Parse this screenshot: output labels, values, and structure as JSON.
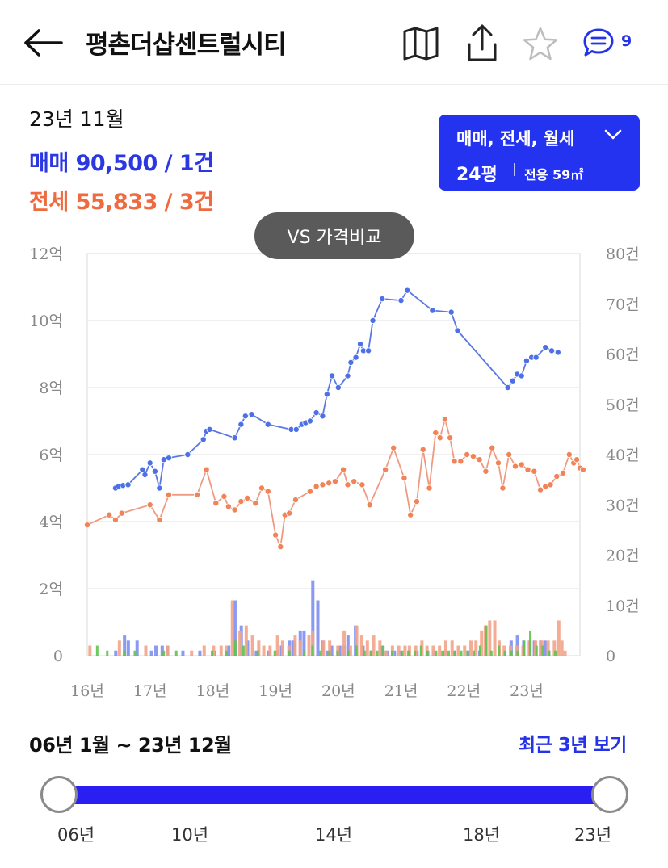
{
  "header": {
    "title": "평촌더샵센트럴시티",
    "comment_count": "9",
    "icons": [
      "back-arrow-icon",
      "map-icon",
      "share-icon",
      "star-icon",
      "chat-icon"
    ]
  },
  "summary": {
    "date": "23년 11월",
    "sale": "매매 90,500 / 1건",
    "jeonse": "전세 55,833 / 3건"
  },
  "filter": {
    "types": "매매, 전세, 월세",
    "size": "24평",
    "area": "전용 59㎡"
  },
  "compare_button": "VS 가격비교",
  "colors": {
    "accent": "#2433e8",
    "sale": "#5c7ce6",
    "jeonse": "#ef8a6a",
    "wolse": "#5ec44a"
  },
  "chart_data": {
    "type": "line",
    "x_ticks": [
      "16년",
      "17년",
      "18년",
      "19년",
      "20년",
      "21년",
      "22년",
      "23년"
    ],
    "y_left_ticks": [
      "0",
      "2억",
      "4억",
      "6억",
      "8억",
      "10억",
      "12억"
    ],
    "y_right_ticks": [
      "0",
      "10건",
      "20건",
      "30건",
      "40건",
      "50건",
      "60건",
      "70건",
      "80건"
    ],
    "ylim_left": [
      0,
      12
    ],
    "ylim_right": [
      0,
      80
    ],
    "xlim": [
      2016,
      2023.85
    ],
    "grid": true,
    "series": [
      {
        "name": "매매",
        "axis": "left",
        "points": [
          [
            2016.45,
            5.0
          ],
          [
            2016.5,
            5.05
          ],
          [
            2016.57,
            5.08
          ],
          [
            2016.65,
            5.1
          ],
          [
            2016.88,
            5.55
          ],
          [
            2016.92,
            5.4
          ],
          [
            2017.0,
            5.75
          ],
          [
            2017.08,
            5.5
          ],
          [
            2017.15,
            5.0
          ],
          [
            2017.22,
            5.85
          ],
          [
            2017.3,
            5.9
          ],
          [
            2017.6,
            6.0
          ],
          [
            2017.85,
            6.45
          ],
          [
            2017.9,
            6.7
          ],
          [
            2017.95,
            6.75
          ],
          [
            2018.35,
            6.5
          ],
          [
            2018.45,
            6.9
          ],
          [
            2018.52,
            7.15
          ],
          [
            2018.62,
            7.2
          ],
          [
            2018.88,
            6.9
          ],
          [
            2019.25,
            6.75
          ],
          [
            2019.33,
            6.75
          ],
          [
            2019.42,
            6.9
          ],
          [
            2019.48,
            6.95
          ],
          [
            2019.55,
            7.0
          ],
          [
            2019.65,
            7.25
          ],
          [
            2019.75,
            7.15
          ],
          [
            2019.82,
            7.8
          ],
          [
            2019.9,
            8.35
          ],
          [
            2020.0,
            8.0
          ],
          [
            2020.15,
            8.35
          ],
          [
            2020.2,
            8.75
          ],
          [
            2020.28,
            8.9
          ],
          [
            2020.35,
            9.3
          ],
          [
            2020.4,
            9.1
          ],
          [
            2020.48,
            9.1
          ],
          [
            2020.55,
            10.0
          ],
          [
            2020.7,
            10.65
          ],
          [
            2021.0,
            10.6
          ],
          [
            2021.1,
            10.9
          ],
          [
            2021.5,
            10.3
          ],
          [
            2021.8,
            10.25
          ],
          [
            2021.9,
            9.7
          ],
          [
            2022.7,
            8.0
          ],
          [
            2022.78,
            8.2
          ],
          [
            2022.85,
            8.4
          ],
          [
            2022.92,
            8.35
          ],
          [
            2023.0,
            8.8
          ],
          [
            2023.08,
            8.9
          ],
          [
            2023.15,
            8.9
          ],
          [
            2023.3,
            9.2
          ],
          [
            2023.4,
            9.1
          ],
          [
            2023.5,
            9.05
          ]
        ]
      },
      {
        "name": "전세",
        "axis": "left",
        "points": [
          [
            2016.0,
            3.9
          ],
          [
            2016.35,
            4.2
          ],
          [
            2016.45,
            4.05
          ],
          [
            2016.55,
            4.25
          ],
          [
            2017.0,
            4.5
          ],
          [
            2017.15,
            4.05
          ],
          [
            2017.3,
            4.8
          ],
          [
            2017.75,
            4.8
          ],
          [
            2017.9,
            5.55
          ],
          [
            2018.05,
            4.55
          ],
          [
            2018.18,
            4.75
          ],
          [
            2018.25,
            4.45
          ],
          [
            2018.35,
            4.35
          ],
          [
            2018.45,
            4.6
          ],
          [
            2018.55,
            4.7
          ],
          [
            2018.68,
            4.55
          ],
          [
            2018.78,
            5.0
          ],
          [
            2018.88,
            4.9
          ],
          [
            2019.0,
            3.6
          ],
          [
            2019.08,
            3.25
          ],
          [
            2019.15,
            4.2
          ],
          [
            2019.22,
            4.25
          ],
          [
            2019.32,
            4.65
          ],
          [
            2019.55,
            4.9
          ],
          [
            2019.65,
            5.05
          ],
          [
            2019.75,
            5.1
          ],
          [
            2019.85,
            5.15
          ],
          [
            2019.95,
            5.2
          ],
          [
            2020.08,
            5.55
          ],
          [
            2020.15,
            5.1
          ],
          [
            2020.25,
            5.2
          ],
          [
            2020.38,
            5.1
          ],
          [
            2020.5,
            4.5
          ],
          [
            2020.75,
            5.55
          ],
          [
            2020.88,
            6.2
          ],
          [
            2021.05,
            5.3
          ],
          [
            2021.15,
            4.2
          ],
          [
            2021.25,
            4.6
          ],
          [
            2021.35,
            6.15
          ],
          [
            2021.45,
            5.0
          ],
          [
            2021.55,
            6.65
          ],
          [
            2021.62,
            6.5
          ],
          [
            2021.7,
            7.05
          ],
          [
            2021.78,
            6.5
          ],
          [
            2021.85,
            5.8
          ],
          [
            2021.95,
            5.8
          ],
          [
            2022.05,
            6.0
          ],
          [
            2022.15,
            5.95
          ],
          [
            2022.25,
            5.85
          ],
          [
            2022.35,
            5.5
          ],
          [
            2022.45,
            6.2
          ],
          [
            2022.55,
            5.75
          ],
          [
            2022.62,
            5.0
          ],
          [
            2022.72,
            6.0
          ],
          [
            2022.82,
            5.65
          ],
          [
            2022.92,
            5.7
          ],
          [
            2023.02,
            5.55
          ],
          [
            2023.12,
            5.5
          ],
          [
            2023.22,
            4.95
          ],
          [
            2023.3,
            5.05
          ],
          [
            2023.38,
            5.1
          ],
          [
            2023.48,
            5.35
          ],
          [
            2023.58,
            5.45
          ],
          [
            2023.68,
            6.0
          ],
          [
            2023.75,
            5.75
          ],
          [
            2023.8,
            5.85
          ],
          [
            2023.85,
            5.6
          ],
          [
            2023.9,
            5.55
          ]
        ]
      }
    ],
    "volume_series": [
      {
        "name": "매매",
        "axis": "right",
        "bars": [
          [
            2016.48,
            1
          ],
          [
            2016.62,
            4
          ],
          [
            2016.68,
            3
          ],
          [
            2016.82,
            3
          ],
          [
            2017.05,
            1
          ],
          [
            2017.12,
            2
          ],
          [
            2017.22,
            2
          ],
          [
            2017.3,
            2
          ],
          [
            2017.55,
            1
          ],
          [
            2017.82,
            1
          ],
          [
            2018.05,
            1
          ],
          [
            2018.28,
            2
          ],
          [
            2018.38,
            11
          ],
          [
            2018.48,
            6
          ],
          [
            2018.58,
            3
          ],
          [
            2018.72,
            1
          ],
          [
            2018.92,
            1
          ],
          [
            2019.05,
            1
          ],
          [
            2019.12,
            2
          ],
          [
            2019.25,
            3
          ],
          [
            2019.32,
            3
          ],
          [
            2019.42,
            5
          ],
          [
            2019.48,
            5
          ],
          [
            2019.62,
            15
          ],
          [
            2019.7,
            11
          ],
          [
            2019.78,
            3
          ],
          [
            2019.85,
            1
          ],
          [
            2019.92,
            2
          ],
          [
            2020.05,
            2
          ],
          [
            2020.12,
            2
          ],
          [
            2020.18,
            4
          ],
          [
            2020.3,
            6
          ],
          [
            2020.42,
            2
          ],
          [
            2020.55,
            1
          ],
          [
            2020.72,
            2
          ],
          [
            2020.8,
            1
          ],
          [
            2020.92,
            1
          ],
          [
            2021.02,
            1
          ],
          [
            2021.15,
            1
          ],
          [
            2021.28,
            1
          ],
          [
            2021.45,
            1
          ],
          [
            2021.55,
            1
          ],
          [
            2021.72,
            1
          ],
          [
            2021.88,
            1
          ],
          [
            2022.1,
            1
          ],
          [
            2022.28,
            1
          ],
          [
            2022.68,
            1
          ],
          [
            2022.78,
            3
          ],
          [
            2022.88,
            4
          ],
          [
            2022.98,
            3
          ],
          [
            2023.08,
            3
          ],
          [
            2023.15,
            3
          ],
          [
            2023.25,
            3
          ],
          [
            2023.32,
            3
          ],
          [
            2023.38,
            1
          ]
        ]
      },
      {
        "name": "전세",
        "axis": "right",
        "bars": [
          [
            2016.03,
            2
          ],
          [
            2016.5,
            3
          ],
          [
            2016.92,
            2
          ],
          [
            2017.27,
            2
          ],
          [
            2017.65,
            1
          ],
          [
            2017.85,
            2
          ],
          [
            2018.0,
            2
          ],
          [
            2018.12,
            2
          ],
          [
            2018.2,
            2
          ],
          [
            2018.3,
            11
          ],
          [
            2018.42,
            5
          ],
          [
            2018.52,
            6
          ],
          [
            2018.62,
            4
          ],
          [
            2018.72,
            3
          ],
          [
            2018.8,
            2
          ],
          [
            2018.9,
            2
          ],
          [
            2019.02,
            4
          ],
          [
            2019.1,
            3
          ],
          [
            2019.2,
            2
          ],
          [
            2019.3,
            4
          ],
          [
            2019.38,
            3
          ],
          [
            2019.52,
            4
          ],
          [
            2019.58,
            5
          ],
          [
            2019.75,
            3
          ],
          [
            2019.85,
            3
          ],
          [
            2019.98,
            2
          ],
          [
            2020.08,
            5
          ],
          [
            2020.18,
            2
          ],
          [
            2020.28,
            6
          ],
          [
            2020.36,
            4
          ],
          [
            2020.45,
            3
          ],
          [
            2020.55,
            4
          ],
          [
            2020.65,
            3
          ],
          [
            2020.75,
            1
          ],
          [
            2020.85,
            2
          ],
          [
            2020.95,
            2
          ],
          [
            2021.05,
            2
          ],
          [
            2021.12,
            2
          ],
          [
            2021.22,
            2
          ],
          [
            2021.32,
            3
          ],
          [
            2021.4,
            2
          ],
          [
            2021.5,
            2
          ],
          [
            2021.6,
            2
          ],
          [
            2021.7,
            3
          ],
          [
            2021.8,
            3
          ],
          [
            2021.9,
            2
          ],
          [
            2022.0,
            2
          ],
          [
            2022.1,
            3
          ],
          [
            2022.18,
            3
          ],
          [
            2022.27,
            5
          ],
          [
            2022.33,
            6
          ],
          [
            2022.4,
            7
          ],
          [
            2022.48,
            7
          ],
          [
            2022.55,
            3
          ],
          [
            2022.63,
            2
          ],
          [
            2022.73,
            2
          ],
          [
            2022.83,
            2
          ],
          [
            2022.93,
            2
          ],
          [
            2023.03,
            3
          ],
          [
            2023.13,
            3
          ],
          [
            2023.23,
            3
          ],
          [
            2023.33,
            3
          ],
          [
            2023.43,
            3
          ],
          [
            2023.5,
            7
          ],
          [
            2023.55,
            3
          ],
          [
            2023.6,
            1
          ]
        ]
      },
      {
        "name": "월세",
        "axis": "right",
        "bars": [
          [
            2016.12,
            2
          ],
          [
            2016.28,
            1
          ],
          [
            2016.55,
            1
          ],
          [
            2016.72,
            1
          ],
          [
            2017.18,
            1
          ],
          [
            2017.38,
            1
          ],
          [
            2017.95,
            1
          ],
          [
            2018.18,
            1
          ],
          [
            2018.32,
            3
          ],
          [
            2018.45,
            2
          ],
          [
            2018.68,
            1
          ],
          [
            2018.95,
            1
          ],
          [
            2019.18,
            1
          ],
          [
            2019.42,
            1
          ],
          [
            2019.55,
            2
          ],
          [
            2019.68,
            1
          ],
          [
            2019.82,
            1
          ],
          [
            2019.95,
            1
          ],
          [
            2020.12,
            1
          ],
          [
            2020.25,
            2
          ],
          [
            2020.38,
            1
          ],
          [
            2020.48,
            1
          ],
          [
            2020.58,
            1
          ],
          [
            2020.68,
            2
          ],
          [
            2020.82,
            1
          ],
          [
            2020.98,
            1
          ],
          [
            2021.08,
            1
          ],
          [
            2021.18,
            1
          ],
          [
            2021.28,
            2
          ],
          [
            2021.38,
            1
          ],
          [
            2021.52,
            1
          ],
          [
            2021.62,
            1
          ],
          [
            2021.72,
            1
          ],
          [
            2021.82,
            1
          ],
          [
            2021.92,
            1
          ],
          [
            2022.02,
            1
          ],
          [
            2022.12,
            1
          ],
          [
            2022.22,
            2
          ],
          [
            2022.32,
            6
          ],
          [
            2022.4,
            1
          ],
          [
            2022.52,
            2
          ],
          [
            2022.62,
            1
          ],
          [
            2022.72,
            1
          ],
          [
            2022.82,
            1
          ],
          [
            2022.92,
            3
          ],
          [
            2023.02,
            5
          ],
          [
            2023.12,
            2
          ],
          [
            2023.22,
            2
          ],
          [
            2023.32,
            1
          ],
          [
            2023.42,
            1
          ]
        ]
      }
    ]
  },
  "range": {
    "label": "06년 1월 ~ 23년 12월",
    "recent_link": "최근 3년 보기",
    "ticks": [
      "06년",
      "10년",
      "14년",
      "18년",
      "23년"
    ],
    "start_value": "06년",
    "end_value": "23년"
  }
}
